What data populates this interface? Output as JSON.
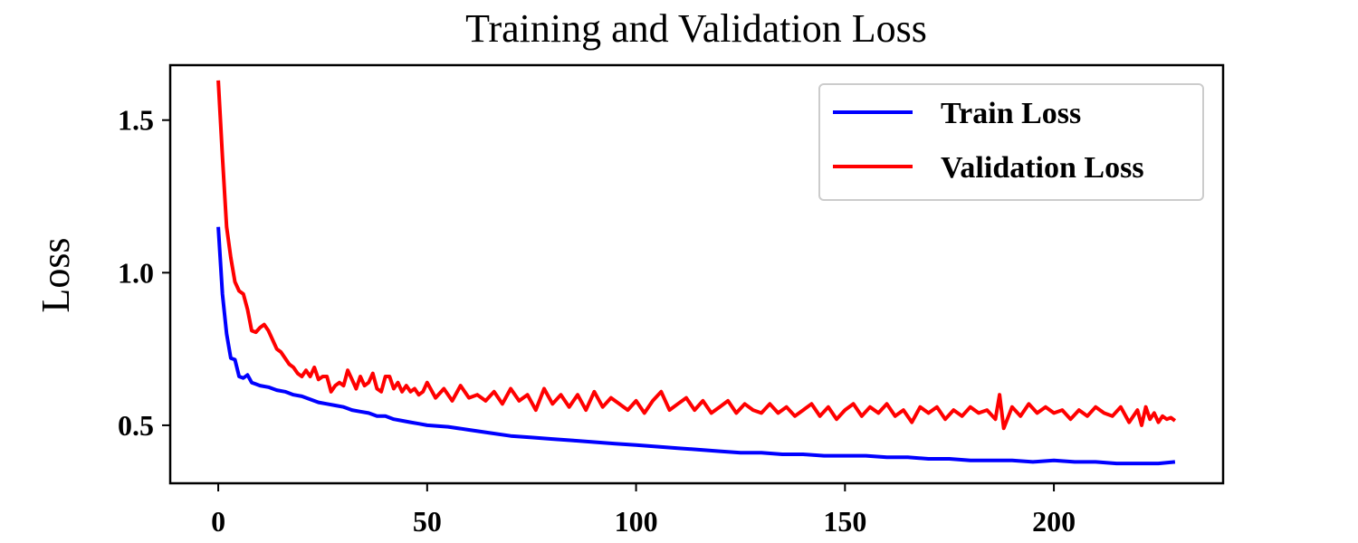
{
  "chart_data": {
    "type": "line",
    "title": "Training and Validation Loss",
    "xlabel": "",
    "ylabel": "Loss",
    "xlim": [
      -11.5,
      240.5
    ],
    "ylim": [
      0.31,
      1.68
    ],
    "xticks": [
      0,
      50,
      100,
      150,
      200
    ],
    "xtick_labels": [
      "0",
      "50",
      "100",
      "150",
      "200"
    ],
    "yticks": [
      0.5,
      1.0,
      1.5
    ],
    "ytick_labels": [
      "0.5",
      "1.0",
      "1.5"
    ],
    "grid": false,
    "legend_position": "top-right",
    "series": [
      {
        "name": "Train Loss",
        "color": "#0000ff",
        "x": [
          0,
          1,
          2,
          3,
          4,
          5,
          6,
          7,
          8,
          9,
          10,
          12,
          14,
          16,
          18,
          20,
          22,
          24,
          26,
          28,
          30,
          32,
          34,
          36,
          38,
          40,
          42,
          44,
          46,
          48,
          50,
          55,
          60,
          65,
          70,
          75,
          80,
          85,
          90,
          95,
          100,
          105,
          110,
          115,
          120,
          125,
          130,
          135,
          140,
          145,
          150,
          155,
          160,
          165,
          170,
          175,
          180,
          185,
          190,
          195,
          200,
          205,
          210,
          215,
          220,
          225,
          229
        ],
        "y": [
          1.15,
          0.93,
          0.8,
          0.72,
          0.715,
          0.66,
          0.655,
          0.665,
          0.64,
          0.635,
          0.63,
          0.625,
          0.615,
          0.61,
          0.6,
          0.595,
          0.585,
          0.575,
          0.57,
          0.565,
          0.56,
          0.55,
          0.545,
          0.54,
          0.53,
          0.53,
          0.52,
          0.515,
          0.51,
          0.505,
          0.5,
          0.495,
          0.485,
          0.475,
          0.465,
          0.46,
          0.455,
          0.45,
          0.445,
          0.44,
          0.435,
          0.43,
          0.425,
          0.42,
          0.415,
          0.41,
          0.41,
          0.405,
          0.405,
          0.4,
          0.4,
          0.4,
          0.395,
          0.395,
          0.39,
          0.39,
          0.385,
          0.385,
          0.385,
          0.38,
          0.385,
          0.38,
          0.38,
          0.375,
          0.375,
          0.375,
          0.38
        ]
      },
      {
        "name": "Validation Loss",
        "color": "#ff0000",
        "x": [
          0,
          1,
          2,
          3,
          4,
          5,
          6,
          7,
          8,
          9,
          10,
          11,
          12,
          13,
          14,
          15,
          16,
          17,
          18,
          19,
          20,
          21,
          22,
          23,
          24,
          25,
          26,
          27,
          28,
          29,
          30,
          31,
          32,
          33,
          34,
          35,
          36,
          37,
          38,
          39,
          40,
          41,
          42,
          43,
          44,
          45,
          46,
          47,
          48,
          49,
          50,
          52,
          54,
          56,
          58,
          60,
          62,
          64,
          66,
          68,
          70,
          72,
          74,
          76,
          78,
          80,
          82,
          84,
          86,
          88,
          90,
          92,
          94,
          96,
          98,
          100,
          102,
          104,
          106,
          108,
          110,
          112,
          114,
          116,
          118,
          120,
          122,
          124,
          126,
          128,
          130,
          132,
          134,
          136,
          138,
          140,
          142,
          144,
          146,
          148,
          150,
          152,
          154,
          156,
          158,
          160,
          162,
          164,
          166,
          168,
          170,
          172,
          174,
          176,
          178,
          180,
          182,
          184,
          186,
          187,
          188,
          190,
          192,
          194,
          196,
          198,
          200,
          202,
          204,
          206,
          208,
          210,
          212,
          214,
          216,
          218,
          220,
          221,
          222,
          223,
          224,
          225,
          226,
          227,
          228,
          229
        ],
        "y": [
          1.63,
          1.38,
          1.15,
          1.05,
          0.97,
          0.94,
          0.93,
          0.88,
          0.81,
          0.805,
          0.82,
          0.83,
          0.81,
          0.78,
          0.75,
          0.74,
          0.72,
          0.7,
          0.69,
          0.67,
          0.66,
          0.68,
          0.66,
          0.69,
          0.65,
          0.66,
          0.66,
          0.61,
          0.63,
          0.64,
          0.63,
          0.68,
          0.65,
          0.62,
          0.66,
          0.63,
          0.64,
          0.67,
          0.62,
          0.61,
          0.66,
          0.66,
          0.62,
          0.64,
          0.61,
          0.63,
          0.61,
          0.62,
          0.6,
          0.61,
          0.64,
          0.59,
          0.62,
          0.58,
          0.63,
          0.59,
          0.6,
          0.58,
          0.61,
          0.57,
          0.62,
          0.58,
          0.6,
          0.55,
          0.62,
          0.57,
          0.6,
          0.56,
          0.6,
          0.55,
          0.61,
          0.56,
          0.59,
          0.57,
          0.55,
          0.58,
          0.54,
          0.58,
          0.61,
          0.55,
          0.57,
          0.59,
          0.55,
          0.58,
          0.54,
          0.56,
          0.58,
          0.54,
          0.57,
          0.55,
          0.54,
          0.57,
          0.54,
          0.56,
          0.53,
          0.55,
          0.57,
          0.53,
          0.56,
          0.52,
          0.55,
          0.57,
          0.53,
          0.56,
          0.54,
          0.57,
          0.53,
          0.55,
          0.51,
          0.56,
          0.54,
          0.56,
          0.52,
          0.55,
          0.53,
          0.56,
          0.54,
          0.55,
          0.52,
          0.6,
          0.49,
          0.56,
          0.53,
          0.57,
          0.54,
          0.56,
          0.54,
          0.55,
          0.52,
          0.55,
          0.53,
          0.56,
          0.54,
          0.53,
          0.56,
          0.51,
          0.55,
          0.5,
          0.56,
          0.52,
          0.54,
          0.51,
          0.53,
          0.52,
          0.525,
          0.515
        ]
      }
    ]
  }
}
